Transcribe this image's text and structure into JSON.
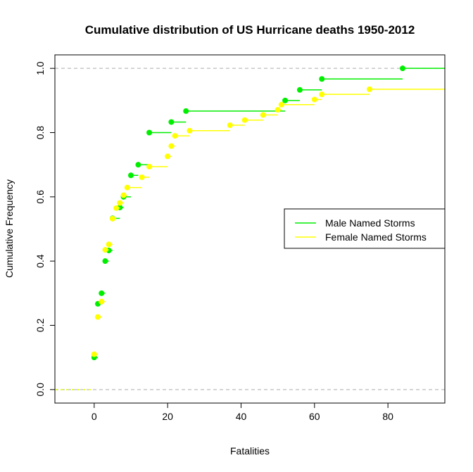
{
  "chart_data": {
    "type": "step",
    "title": "Cumulative distribution of US Hurricane deaths 1950-2012",
    "xlabel": "Fatalities",
    "ylabel": "Cumulative Frequency",
    "xlim": [
      -10.7,
      95.5
    ],
    "ylim": [
      -0.042,
      1.042
    ],
    "xticks": [
      "0",
      "20",
      "40",
      "60",
      "80"
    ],
    "yticks": [
      "0.0",
      "0.2",
      "0.4",
      "0.6",
      "0.8",
      "1.0"
    ],
    "reference_lines": [
      0,
      1
    ],
    "legend_position": "right",
    "series": [
      {
        "name": "Male Named Storms",
        "color": "#00ee00",
        "x": [
          0,
          1,
          2,
          3,
          4,
          5,
          7,
          8,
          10,
          12,
          15,
          21,
          25,
          52,
          56,
          62,
          84
        ],
        "y": [
          0.1,
          0.267,
          0.3,
          0.4,
          0.433,
          0.533,
          0.567,
          0.6,
          0.667,
          0.7,
          0.8,
          0.833,
          0.867,
          0.9,
          0.933,
          0.967,
          1.0
        ]
      },
      {
        "name": "Female Named Storms",
        "color": "#ffff00",
        "x": [
          0,
          1,
          2,
          3,
          4,
          5,
          6,
          7,
          8,
          9,
          13,
          15,
          20,
          21,
          22,
          26,
          37,
          41,
          46,
          50,
          51,
          60,
          62,
          75
        ],
        "y": [
          0.11,
          0.226,
          0.274,
          0.435,
          0.452,
          0.532,
          0.565,
          0.581,
          0.605,
          0.629,
          0.661,
          0.694,
          0.726,
          0.758,
          0.79,
          0.806,
          0.823,
          0.839,
          0.855,
          0.871,
          0.887,
          0.903,
          0.919,
          0.935
        ]
      }
    ]
  }
}
